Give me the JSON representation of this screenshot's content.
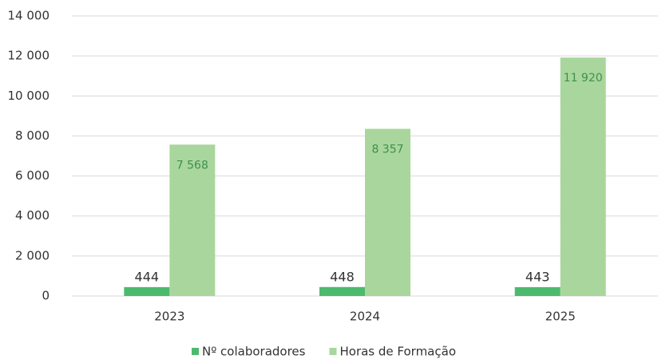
{
  "chart_data": {
    "type": "bar",
    "categories": [
      "2023",
      "2024",
      "2025"
    ],
    "series": [
      {
        "name": "Nº colaboradores",
        "color": "#4cba6e",
        "values": [
          444,
          448,
          443
        ]
      },
      {
        "name": "Horas de Formação",
        "color": "#a9d69c",
        "values": [
          7568,
          8357,
          11920
        ],
        "value_labels": [
          "7 568",
          "8 357",
          "11 920"
        ]
      }
    ],
    "ylim": [
      0,
      14000
    ],
    "yticks": [
      0,
      {
        "value": 2000,
        "label": "2 000"
      },
      {
        "value": 4000,
        "label": "4 000"
      },
      {
        "value": 6000,
        "label": "6 000"
      },
      {
        "value": 8000,
        "label": "8 000"
      },
      {
        "value": 10000,
        "label": "10 000"
      },
      {
        "value": 12000,
        "label": "12 000"
      },
      {
        "value": 14000,
        "label": "14 000"
      }
    ],
    "grid": true,
    "legend": "bottom"
  }
}
